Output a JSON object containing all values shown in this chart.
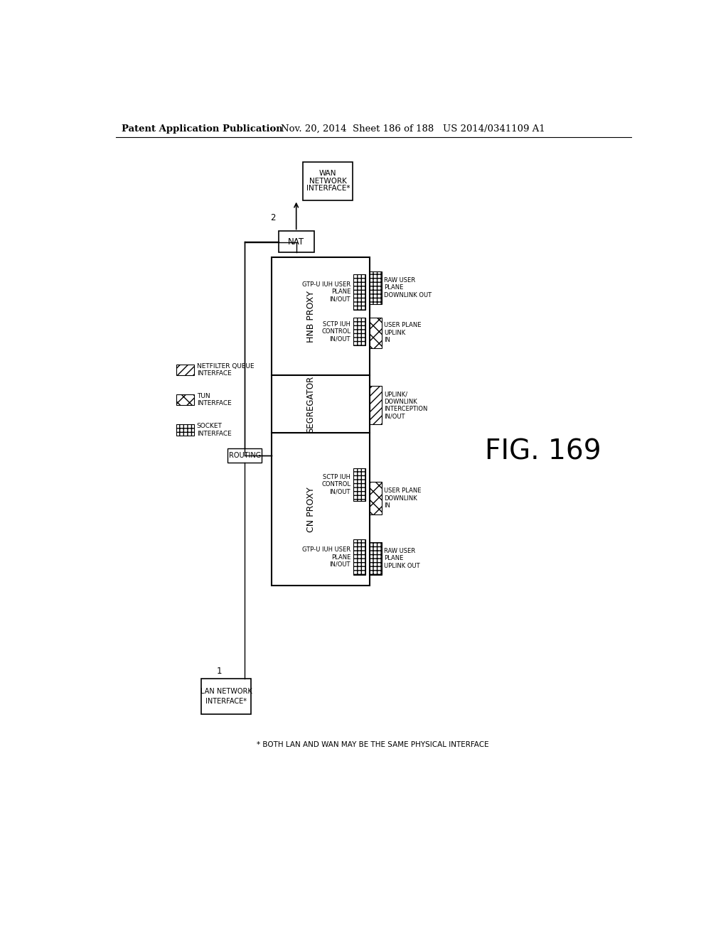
{
  "title_left": "Patent Application Publication",
  "title_right": "Nov. 20, 2014  Sheet 186 of 188   US 2014/0341109 A1",
  "fig_label": "FIG. 169",
  "footnote": "* BOTH LAN AND WAN MAY BE THE SAME PHYSICAL INTERFACE",
  "background_color": "#ffffff"
}
